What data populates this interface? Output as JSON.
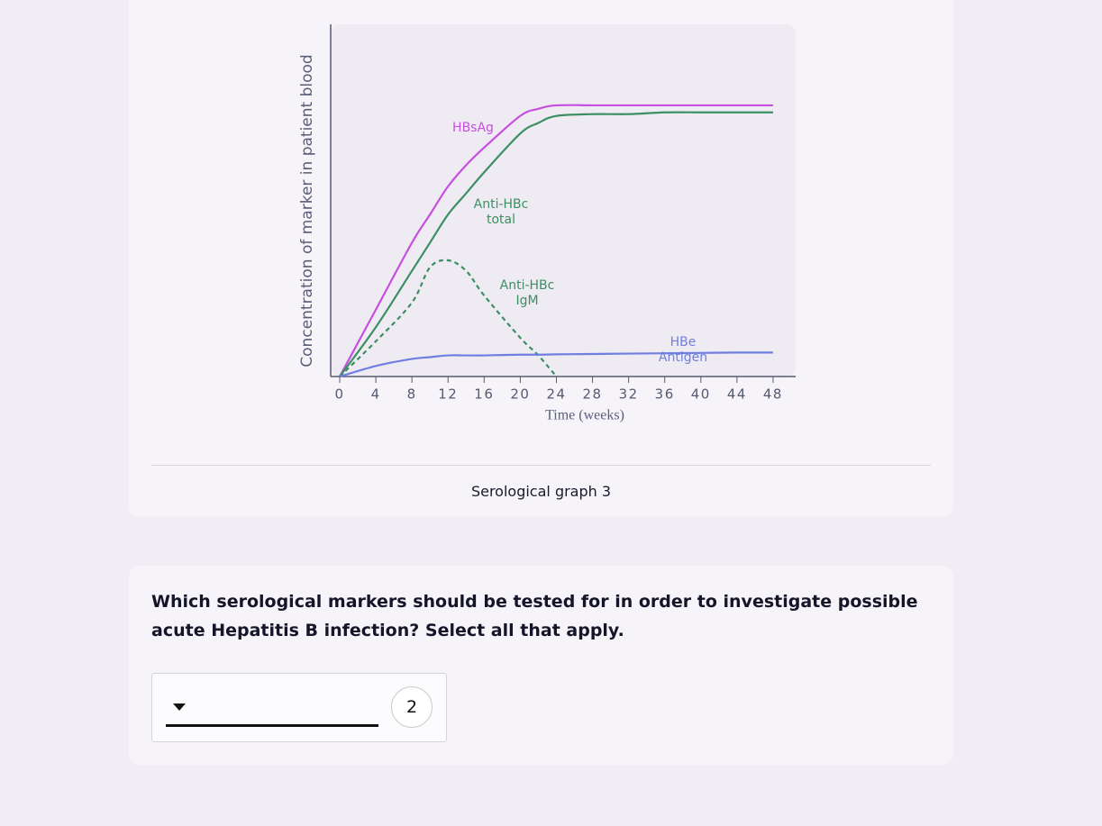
{
  "figure": {
    "chart_data": {
      "type": "line",
      "y_label": "Concentration of marker in patient blood",
      "x_label": "Time (weeks)",
      "x": [
        0,
        4,
        8,
        10,
        12,
        14,
        16,
        20,
        22,
        24,
        28,
        32,
        36,
        40,
        44,
        48
      ],
      "xlim": [
        -1,
        50.5
      ],
      "xticks": [
        0,
        4,
        8,
        12,
        16,
        20,
        24,
        28,
        32,
        36,
        40,
        44,
        48
      ],
      "ylim": [
        0,
        1
      ],
      "series": [
        {
          "name": "HBsAg",
          "color": "#c64fe0",
          "style": "solid",
          "values": [
            0,
            0.19,
            0.38,
            0.46,
            0.54,
            0.6,
            0.65,
            0.74,
            0.76,
            0.77,
            0.77,
            0.77,
            0.77,
            0.77,
            0.77,
            0.77
          ]
        },
        {
          "name": "Anti-HBc total",
          "color": "#3c8f63",
          "style": "solid",
          "values": [
            0,
            0.14,
            0.3,
            0.38,
            0.46,
            0.52,
            0.58,
            0.69,
            0.72,
            0.74,
            0.745,
            0.745,
            0.75,
            0.75,
            0.75,
            0.75
          ]
        },
        {
          "name": "Anti-HBc IgM",
          "color": "#3c8f63",
          "style": "dashed",
          "values": [
            0,
            0.1,
            0.21,
            0.31,
            0.33,
            0.3,
            0.23,
            0.11,
            0.06,
            0,
            null,
            null,
            null,
            null,
            null,
            null
          ]
        },
        {
          "name": "HBe Antigen",
          "color": "#6f7fe0",
          "style": "solid",
          "values": [
            0,
            0.03,
            0.05,
            0.055,
            0.06,
            0.06,
            0.06,
            0.062,
            0.062,
            0.063,
            0.064,
            0.065,
            0.066,
            0.067,
            0.068,
            0.068
          ]
        }
      ]
    },
    "caption": "Serological graph 3"
  },
  "question": {
    "text": "Which serological markers should be tested for in order to investigate possible acute Hepatitis B infection? Select all that apply.",
    "selected_count": 2
  }
}
